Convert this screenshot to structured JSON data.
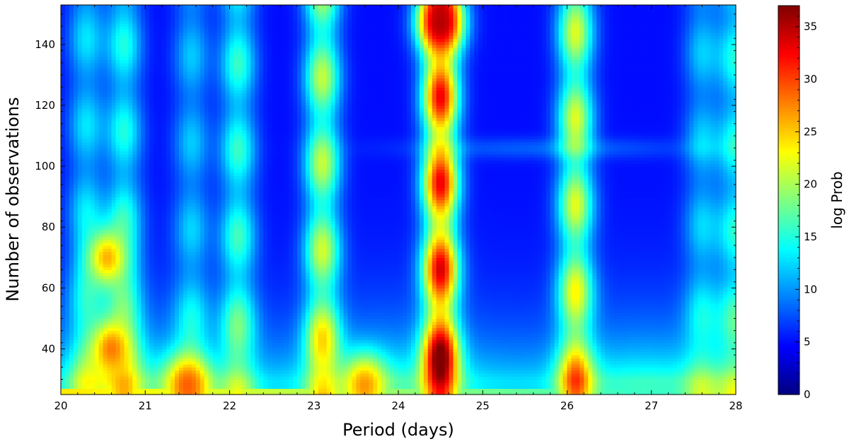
{
  "chart_data": {
    "type": "heatmap",
    "title": "",
    "xlabel": "Period (days)",
    "ylabel": "Number of observations",
    "colorbar_label": "log Prob",
    "colormap": "jet",
    "xlim": [
      20,
      28
    ],
    "ylim": [
      25,
      153
    ],
    "zlim": [
      0,
      37
    ],
    "x_ticks": [
      20,
      21,
      22,
      23,
      24,
      25,
      26,
      27,
      28
    ],
    "x_tick_labels": [
      "20",
      "21",
      "22",
      "23",
      "24",
      "25",
      "26",
      "27",
      "28"
    ],
    "y_ticks": [
      40,
      60,
      80,
      100,
      120,
      140
    ],
    "y_tick_labels": [
      "40",
      "60",
      "80",
      "100",
      "120",
      "140"
    ],
    "colorbar_ticks": [
      0,
      5,
      10,
      15,
      20,
      25,
      30,
      35
    ],
    "colorbar_tick_labels": [
      "0",
      "5",
      "10",
      "15",
      "20",
      "25",
      "30",
      "35"
    ],
    "ridges": [
      {
        "period": 20.3,
        "log_prob_high_n": 13
      },
      {
        "period": 20.75,
        "log_prob_high_n": 15
      },
      {
        "period": 21.55,
        "log_prob_high_n": 12
      },
      {
        "period": 22.1,
        "log_prob_high_n": 16
      },
      {
        "period": 23.1,
        "log_prob_high_n": 21
      },
      {
        "period": 24.5,
        "log_prob_high_n": 33
      },
      {
        "period": 26.1,
        "log_prob_high_n": 22
      },
      {
        "period": 27.6,
        "log_prob_high_n": 12
      },
      {
        "period": 28.0,
        "log_prob_high_n": 15
      }
    ],
    "hotspots": [
      {
        "period": 20.55,
        "n_obs": 70,
        "log_prob": 26
      },
      {
        "period": 20.6,
        "n_obs": 40,
        "log_prob": 28
      },
      {
        "period": 21.5,
        "n_obs": 28,
        "log_prob": 29
      },
      {
        "period": 23.6,
        "n_obs": 28,
        "log_prob": 27
      },
      {
        "period": 24.5,
        "n_obs": 147,
        "log_prob": 35
      }
    ]
  }
}
